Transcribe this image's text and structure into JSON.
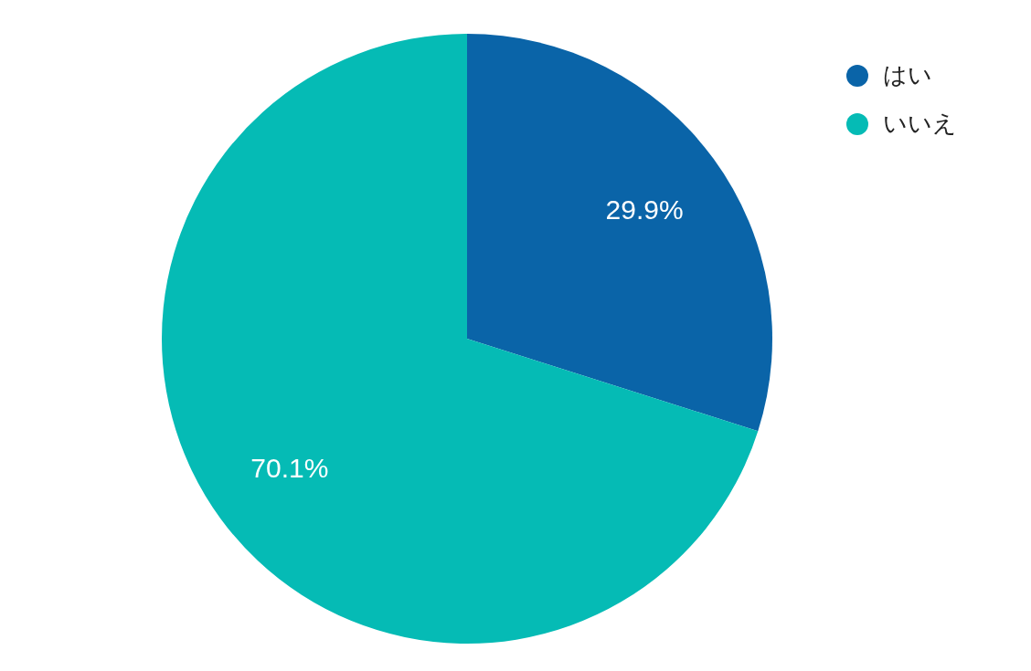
{
  "chart_data": {
    "type": "pie",
    "categories": [
      "はい",
      "いいえ"
    ],
    "values": [
      29.9,
      70.1
    ],
    "colors": [
      "#0a64a8",
      "#05bbb5"
    ],
    "value_labels": [
      "29.9%",
      "70.1%"
    ],
    "legend": "top right"
  }
}
